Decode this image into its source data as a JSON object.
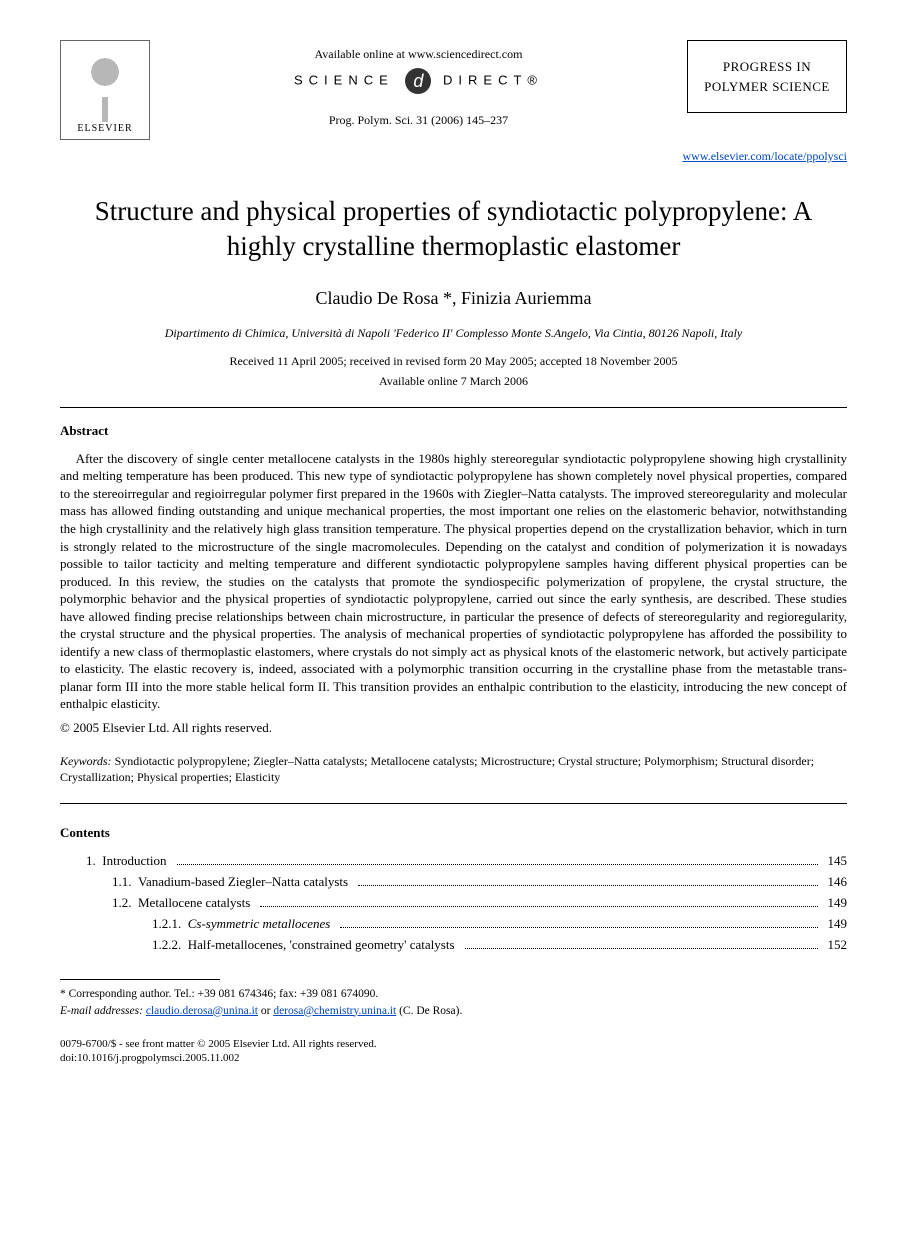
{
  "header": {
    "publisher": "ELSEVIER",
    "available_online": "Available online at www.sciencedirect.com",
    "science_direct_left": "SCIENCE",
    "science_direct_right": "DIRECT®",
    "sd_badge_glyph": "d",
    "journal_ref": "Prog. Polym. Sci. 31 (2006) 145–237",
    "journal_box_line1": "PROGRESS IN",
    "journal_box_line2": "POLYMER SCIENCE",
    "journal_url": "www.elsevier.com/locate/ppolysci"
  },
  "title": "Structure and physical properties of syndiotactic polypropylene: A highly crystalline thermoplastic elastomer",
  "authors": "Claudio De Rosa *, Finizia Auriemma",
  "affiliation": "Dipartimento di Chimica, Università di Napoli 'Federico II' Complesso Monte S.Angelo, Via Cintia, 80126 Napoli, Italy",
  "dates_line1": "Received 11 April 2005; received in revised form 20 May 2005; accepted 18 November 2005",
  "dates_line2": "Available online 7 March 2006",
  "abstract_heading": "Abstract",
  "abstract_body": "After the discovery of single center metallocene catalysts in the 1980s highly stereoregular syndiotactic polypropylene showing high crystallinity and melting temperature has been produced. This new type of syndiotactic polypropylene has shown completely novel physical properties, compared to the stereoirregular and regioirregular polymer first prepared in the 1960s with Ziegler–Natta catalysts. The improved stereoregularity and molecular mass has allowed finding outstanding and unique mechanical properties, the most important one relies on the elastomeric behavior, notwithstanding the high crystallinity and the relatively high glass transition temperature. The physical properties depend on the crystallization behavior, which in turn is strongly related to the microstructure of the single macromolecules. Depending on the catalyst and condition of polymerization it is nowadays possible to tailor tacticity and melting temperature and different syndiotactic polypropylene samples having different physical properties can be produced. In this review, the studies on the catalysts that promote the syndiospecific polymerization of propylene, the crystal structure, the polymorphic behavior and the physical properties of syndiotactic polypropylene, carried out since the early synthesis, are described. These studies have allowed finding precise relationships between chain microstructure, in particular the presence of defects of stereoregularity and regioregularity, the crystal structure and the physical properties. The analysis of mechanical properties of syndiotactic polypropylene has afforded the possibility to identify a new class of thermoplastic elastomers, where crystals do not simply act as physical knots of the elastomeric network, but actively participate to elasticity. The elastic recovery is, indeed, associated with a polymorphic transition occurring in the crystalline phase from the metastable trans-planar form III into the more stable helical form II. This transition provides an enthalpic contribution to the elasticity, introducing the new concept of enthalpic elasticity.",
  "copyright": "© 2005 Elsevier Ltd. All rights reserved.",
  "keywords_label": "Keywords:",
  "keywords_text": " Syndiotactic polypropylene; Ziegler–Natta catalysts; Metallocene catalysts; Microstructure; Crystal structure; Polymorphism; Structural disorder; Crystallization; Physical properties; Elasticity",
  "contents_heading": "Contents",
  "toc": [
    {
      "indent": 1,
      "num": "1.",
      "label": "Introduction",
      "page": "145"
    },
    {
      "indent": 2,
      "num": "1.1.",
      "label": "Vanadium-based Ziegler–Natta catalysts",
      "page": "146"
    },
    {
      "indent": 2,
      "num": "1.2.",
      "label": "Metallocene catalysts",
      "page": "149"
    },
    {
      "indent": 3,
      "num": "1.2.1.",
      "label": "Cs-symmetric metallocenes",
      "page": "149"
    },
    {
      "indent": 3,
      "num": "1.2.2.",
      "label": "Half-metallocenes, 'constrained geometry' catalysts",
      "page": "152"
    }
  ],
  "footnote": {
    "corr": "* Corresponding author. Tel.: +39 081 674346; fax: +39 081 674090.",
    "email_label": "E-mail addresses:",
    "email1": "claudio.derosa@unina.it",
    "email_or": " or ",
    "email2": "derosa@chemistry.unina.it",
    "email_tail": " (C. De Rosa)."
  },
  "footer": {
    "issn_line": "0079-6700/$ - see front matter © 2005 Elsevier Ltd. All rights reserved.",
    "doi_line": "doi:10.1016/j.progpolymsci.2005.11.002"
  }
}
